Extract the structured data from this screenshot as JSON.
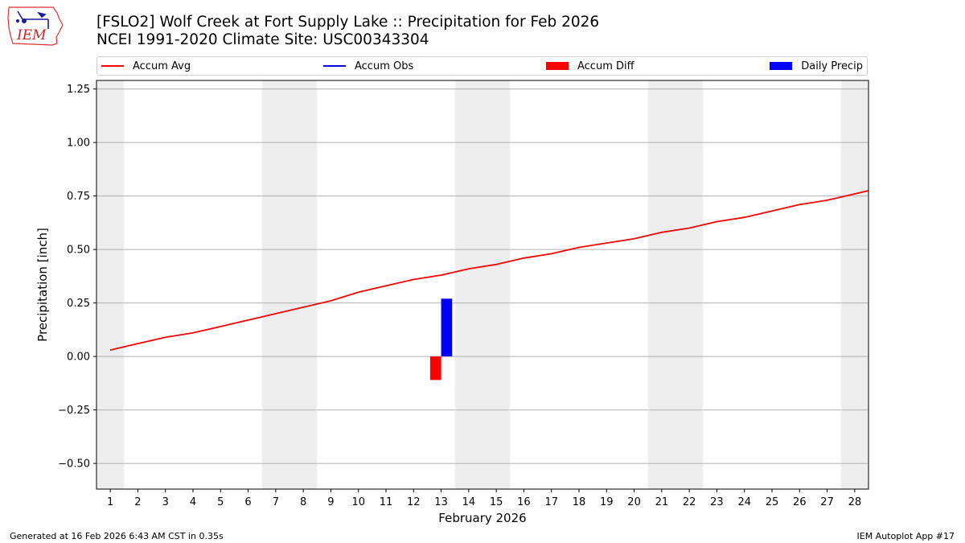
{
  "header": {
    "title_line1": "[FSLO2] Wolf Creek at Fort Supply Lake :: Precipitation for Feb 2026",
    "title_line2": "NCEI 1991-2020 Climate Site: USC00343304",
    "logo_text": "IEM"
  },
  "legend": {
    "items": [
      {
        "label": "Accum Avg",
        "color": "#ff0000",
        "kind": "line"
      },
      {
        "label": "Accum Obs",
        "color": "#0000ff",
        "kind": "line"
      },
      {
        "label": "Accum Diff",
        "color": "#ff0000",
        "kind": "box"
      },
      {
        "label": "Daily Precip",
        "color": "#0000ff",
        "kind": "box"
      }
    ]
  },
  "footer": {
    "left": "Generated at 16 Feb 2026 6:43 AM CST in 0.35s",
    "right": "IEM Autoplot App #17"
  },
  "chart_data": {
    "type": "line",
    "xlabel": "February 2026",
    "ylabel": "Precipitation [inch]",
    "xlim": [
      0.5,
      28.5
    ],
    "ylim": [
      -0.62,
      1.29
    ],
    "x_ticks": [
      1,
      2,
      3,
      4,
      5,
      6,
      7,
      8,
      9,
      10,
      11,
      12,
      13,
      14,
      15,
      16,
      17,
      18,
      19,
      20,
      21,
      22,
      23,
      24,
      25,
      26,
      27,
      28
    ],
    "y_ticks": [
      -0.5,
      -0.25,
      0.0,
      0.25,
      0.5,
      0.75,
      1.0,
      1.25
    ],
    "y_tick_labels": [
      "−0.50",
      "−0.25",
      "0.00",
      "0.25",
      "0.50",
      "0.75",
      "1.00",
      "1.25"
    ],
    "grid": "horizontal",
    "weekend_shading": [
      [
        0.5,
        1.5
      ],
      [
        6.5,
        8.5
      ],
      [
        13.5,
        15.5
      ],
      [
        20.5,
        22.5
      ],
      [
        27.5,
        28.5
      ]
    ],
    "shade_color": "#eeeeee",
    "series": [
      {
        "name": "Accum Avg",
        "color": "#ff0000",
        "x": [
          1,
          2,
          3,
          4,
          5,
          6,
          7,
          8,
          9,
          10,
          11,
          12,
          13,
          14,
          15,
          16,
          17,
          18,
          19,
          20,
          21,
          22,
          23,
          24,
          25,
          26,
          27,
          28,
          28.5
        ],
        "values": [
          0.03,
          0.06,
          0.09,
          0.11,
          0.14,
          0.17,
          0.2,
          0.23,
          0.26,
          0.3,
          0.33,
          0.36,
          0.38,
          0.41,
          0.43,
          0.46,
          0.48,
          0.51,
          0.53,
          0.55,
          0.58,
          0.6,
          0.63,
          0.65,
          0.68,
          0.71,
          0.73,
          0.76,
          0.775
        ]
      }
    ],
    "bars": [
      {
        "name": "Accum Diff",
        "color": "#ff0000",
        "x": 12.8,
        "width": 0.4,
        "value": -0.11
      },
      {
        "name": "Daily Precip",
        "color": "#0000ff",
        "x": 13.2,
        "width": 0.4,
        "value": 0.27
      }
    ]
  }
}
